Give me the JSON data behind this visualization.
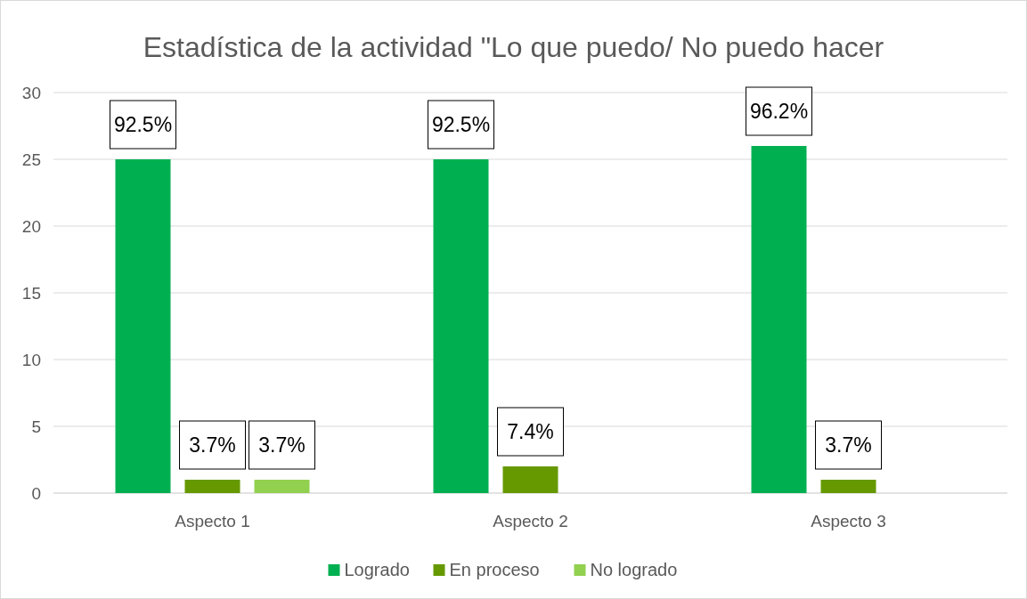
{
  "chart_data": {
    "type": "bar",
    "title": "Estadística de la actividad \"Lo que puedo/ No puedo hacer",
    "categories": [
      "Aspecto 1",
      "Aspecto 2",
      "Aspecto 3"
    ],
    "series": [
      {
        "name": "Logrado",
        "color": "#00b050",
        "values": [
          25,
          25,
          26
        ]
      },
      {
        "name": "En proceso",
        "color": "#669900",
        "values": [
          1,
          2,
          1
        ]
      },
      {
        "name": "No logrado",
        "color": "#92d050",
        "values": [
          1,
          null,
          null
        ]
      }
    ],
    "annotations": [
      "92.5%",
      "3.7%",
      "3.7%",
      "92.5%",
      "7.4%",
      "96.2%",
      "3.7%"
    ],
    "ylim": [
      0,
      30
    ],
    "yticks": [
      0,
      5,
      10,
      15,
      20,
      25,
      30
    ],
    "grid": "y",
    "legend": "bottom"
  }
}
